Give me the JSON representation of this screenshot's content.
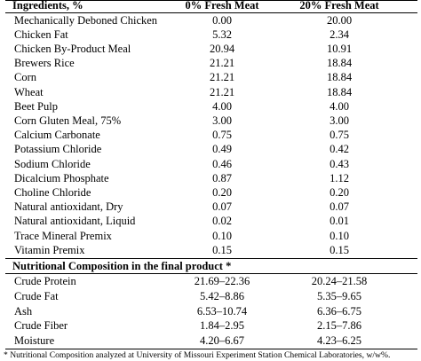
{
  "table": {
    "headers": {
      "ingredients": "Ingredients, %",
      "col1": "0% Fresh Meat",
      "col2": "20% Fresh Meat"
    },
    "ingredients": [
      {
        "name": "Mechanically Deboned Chicken",
        "v1": "0.00",
        "v2": "20.00"
      },
      {
        "name": "Chicken Fat",
        "v1": "5.32",
        "v2": "2.34"
      },
      {
        "name": "Chicken By-Product Meal",
        "v1": "20.94",
        "v2": "10.91"
      },
      {
        "name": "Brewers Rice",
        "v1": "21.21",
        "v2": "18.84"
      },
      {
        "name": "Corn",
        "v1": "21.21",
        "v2": "18.84"
      },
      {
        "name": "Wheat",
        "v1": "21.21",
        "v2": "18.84"
      },
      {
        "name": "Beet Pulp",
        "v1": "4.00",
        "v2": "4.00"
      },
      {
        "name": "Corn Gluten Meal, 75%",
        "v1": "3.00",
        "v2": "3.00"
      },
      {
        "name": "Calcium Carbonate",
        "v1": "0.75",
        "v2": "0.75"
      },
      {
        "name": "Potassium Chloride",
        "v1": "0.49",
        "v2": "0.42"
      },
      {
        "name": "Sodium Chloride",
        "v1": "0.46",
        "v2": "0.43"
      },
      {
        "name": "Dicalcium Phosphate",
        "v1": "0.87",
        "v2": "1.12"
      },
      {
        "name": "Choline Chloride",
        "v1": "0.20",
        "v2": "0.20"
      },
      {
        "name": "Natural antioxidant, Dry",
        "v1": "0.07",
        "v2": "0.07"
      },
      {
        "name": "Natural antioxidant, Liquid",
        "v1": "0.02",
        "v2": "0.01"
      },
      {
        "name": "Trace Mineral Premix",
        "v1": "0.10",
        "v2": "0.10"
      },
      {
        "name": "Vitamin Premix",
        "v1": "0.15",
        "v2": "0.15"
      }
    ],
    "nutrition_title": "Nutritional Composition in the final product *",
    "nutrition": [
      {
        "name": "Crude Protein",
        "v1": "21.69–22.36",
        "v2": "20.24–21.58"
      },
      {
        "name": "Crude Fat",
        "v1": "5.42–8.86",
        "v2": "5.35–9.65"
      },
      {
        "name": "Ash",
        "v1": "6.53–10.74",
        "v2": "6.36–6.75"
      },
      {
        "name": "Crude Fiber",
        "v1": "1.84–2.95",
        "v2": "2.15–7.86"
      },
      {
        "name": "Moisture",
        "v1": "4.20–6.67",
        "v2": "4.23–6.25"
      }
    ],
    "footnote": "* Nutritional Composition analyzed at University of Missouri Experiment Station Chemical Laboratories, w/w%."
  }
}
